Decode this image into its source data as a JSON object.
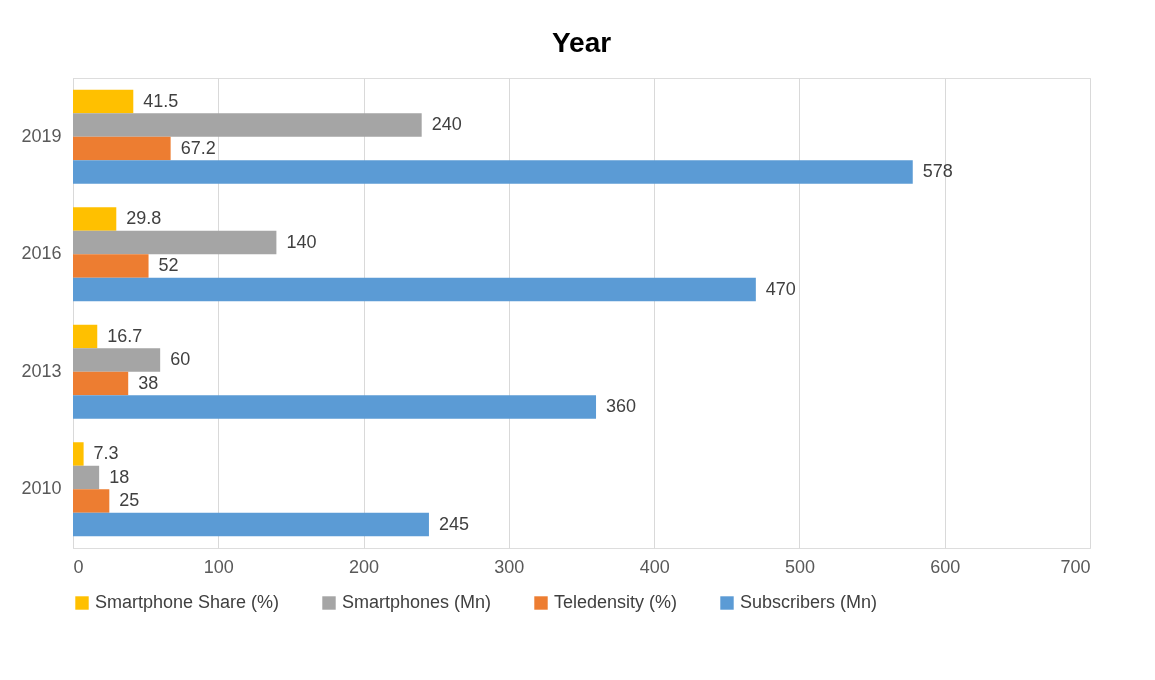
{
  "chart_data": {
    "type": "bar",
    "orientation": "horizontal",
    "title": "Year",
    "categories": [
      "2019",
      "2016",
      "2013",
      "2010"
    ],
    "series": [
      {
        "name": "Smartphone Share (%)",
        "color": "#ffc000",
        "values": [
          41.5,
          29.8,
          16.7,
          7.3
        ]
      },
      {
        "name": "Smartphones (Mn)",
        "color": "#a5a5a5",
        "values": [
          240,
          140,
          60,
          18
        ]
      },
      {
        "name": "Teledensity (%)",
        "color": "#ed7d31",
        "values": [
          67.2,
          52,
          38,
          25
        ]
      },
      {
        "name": "Subscribers (Mn)",
        "color": "#5b9bd5",
        "values": [
          578,
          470,
          360,
          245
        ]
      }
    ],
    "xlim": [
      0,
      700
    ],
    "xticks": [
      0,
      100,
      200,
      300,
      400,
      500,
      600,
      700
    ],
    "grid": "x",
    "legend": "bottom",
    "data_labels": true
  }
}
